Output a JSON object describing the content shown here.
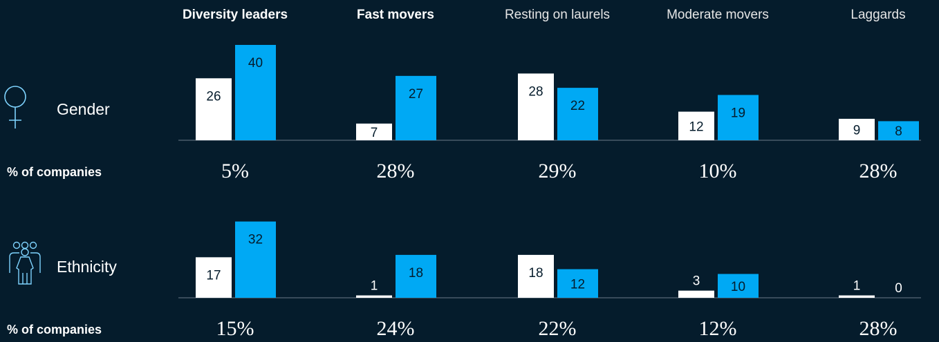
{
  "chart_data": [
    {
      "type": "bar",
      "title": "Gender",
      "categories": [
        "Diversity leaders",
        "Fast movers",
        "Resting on laurels",
        "Moderate movers",
        "Laggards"
      ],
      "emphasis": [
        true,
        true,
        false,
        false,
        false
      ],
      "series": [
        {
          "color": "#ffffff",
          "values": [
            26,
            7,
            28,
            12,
            9
          ]
        },
        {
          "color": "#00a9f4",
          "values": [
            40,
            27,
            22,
            19,
            8
          ]
        }
      ],
      "ylim": [
        0,
        40
      ],
      "share_title": "% of companies",
      "shares": [
        5,
        28,
        29,
        10,
        28
      ],
      "share_labels": [
        "5%",
        "28%",
        "29%",
        "10%",
        "28%"
      ]
    },
    {
      "type": "bar",
      "title": "Ethnicity",
      "series": [
        {
          "color": "#ffffff",
          "values": [
            17,
            1,
            18,
            3,
            1
          ]
        },
        {
          "color": "#00a9f4",
          "values": [
            32,
            18,
            12,
            10,
            0
          ]
        }
      ],
      "ylim": [
        0,
        40
      ],
      "share_title": "% of companies",
      "shares": [
        15,
        24,
        22,
        12,
        28
      ],
      "share_labels": [
        "15%",
        "24%",
        "22%",
        "12%",
        "28%"
      ]
    }
  ]
}
